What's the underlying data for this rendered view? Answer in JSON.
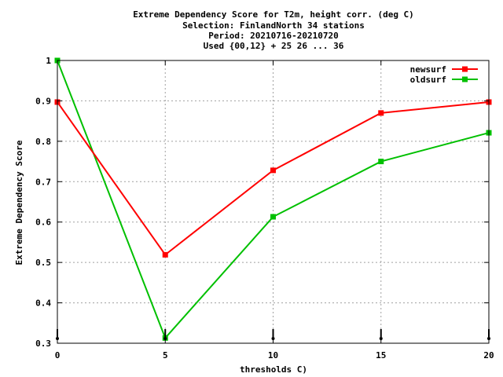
{
  "chart_data": {
    "type": "line",
    "title_lines": [
      "Extreme Dependency Score  for T2m, height corr. (deg C)",
      "Selection: FinlandNorth     34 stations",
      "Period: 20210716-20210720",
      "Used {00,12} + 25 26 ... 36"
    ],
    "xlabel": "thresholds C)",
    "ylabel": "Extreme Dependency Score",
    "xlim": [
      0,
      20
    ],
    "ylim": [
      0.3,
      1.0
    ],
    "x_ticks": [
      0,
      5,
      10,
      15,
      20
    ],
    "x_tick_labels": [
      "0",
      "5",
      "10",
      "15",
      "20"
    ],
    "y_ticks": [
      0.3,
      0.4,
      0.5,
      0.6,
      0.7,
      0.8,
      0.9,
      1.0
    ],
    "y_tick_labels": [
      "0.3",
      "0.4",
      "0.5",
      "0.6",
      "0.7",
      "0.8",
      "0.9",
      "1"
    ],
    "grid": true,
    "legend_position": "top-right",
    "x": [
      0,
      5,
      10,
      15,
      20
    ],
    "series": [
      {
        "name": "newsurf",
        "color": "#ff0000",
        "values": [
          0.897,
          0.519,
          0.728,
          0.87,
          0.897
        ]
      },
      {
        "name": "oldsurf",
        "color": "#00c000",
        "values": [
          1.0,
          0.313,
          0.613,
          0.75,
          0.821
        ]
      }
    ]
  }
}
